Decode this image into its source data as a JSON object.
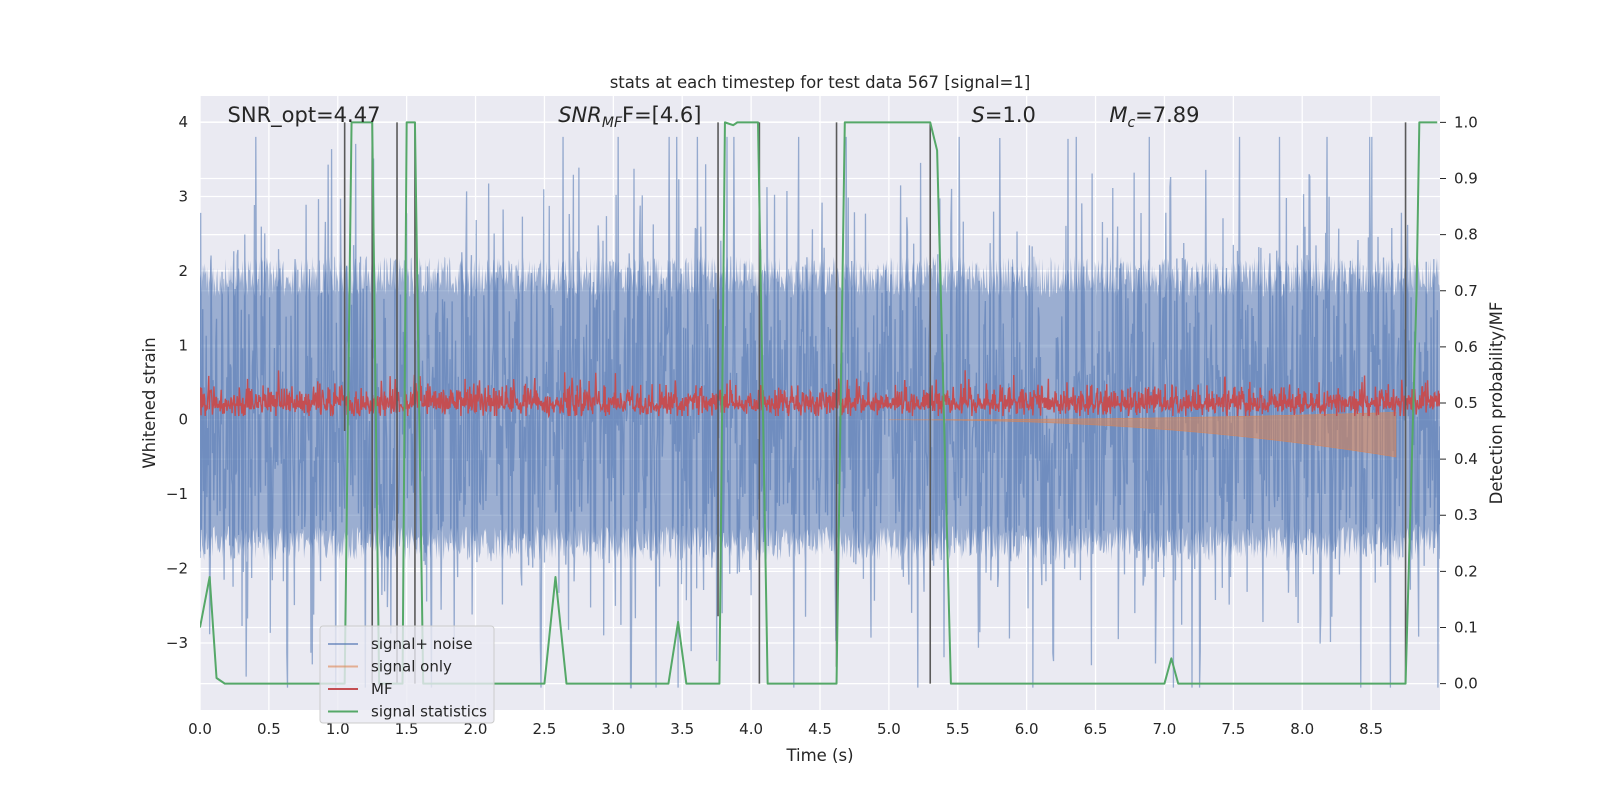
{
  "chart_data": {
    "type": "line",
    "title": "stats at each timestep for test data 567 [signal=1]",
    "xlabel": "Time (s)",
    "ylabel_left": "Whitened strain",
    "ylabel_right": "Detection probability/MF",
    "xlim": [
      0,
      9.0
    ],
    "ylim_left": [
      -3.9,
      4.35
    ],
    "ylim_right": [
      -0.047,
      1.047
    ],
    "grid": true,
    "legend_position": "lower-left",
    "x_ticks": [
      "0.0",
      "0.5",
      "1.0",
      "1.5",
      "2.0",
      "2.5",
      "3.0",
      "3.5",
      "4.0",
      "4.5",
      "5.0",
      "5.5",
      "6.0",
      "6.5",
      "7.0",
      "7.5",
      "8.0",
      "8.5"
    ],
    "y_ticks_left": [
      "4",
      "3",
      "2",
      "1",
      "0",
      "−1",
      "−2",
      "−3"
    ],
    "y_ticks_right": [
      "1.0",
      "0.9",
      "0.8",
      "0.7",
      "0.6",
      "0.5",
      "0.4",
      "0.3",
      "0.2",
      "0.1",
      "0.0"
    ],
    "annotations": [
      {
        "text": "SNR_opt=4.47",
        "x": 0.2
      },
      {
        "text": "SNR",
        "sub": "MF",
        "rest": "F=[4.6]",
        "x": 2.6
      },
      {
        "text": "S",
        "rest": "=1.0",
        "x": 5.6
      },
      {
        "text": "M",
        "sub": "c",
        "rest": "=7.89",
        "x": 6.6
      }
    ],
    "series": [
      {
        "name": "signal+ noise",
        "color": "#4c72b0",
        "axis": "left",
        "envelope_upper": 2.2,
        "envelope_lower": -1.9,
        "noise_std": 0.85
      },
      {
        "name": "signal only",
        "color": "#dd8452",
        "axis": "left",
        "start_time": 5.0,
        "end_time": 8.68,
        "peak_amplitude": 0.5
      },
      {
        "name": "MF",
        "color": "#c44e52",
        "axis": "left",
        "baseline": 0.22,
        "noise_std": 0.13
      },
      {
        "name": "signal statistics",
        "color": "#55a868",
        "axis": "right",
        "x": [
          0,
          0.07,
          0.12,
          0.18,
          1.05,
          1.08,
          1.1,
          1.25,
          1.3,
          1.47,
          1.5,
          1.56,
          1.62,
          2.5,
          2.58,
          2.66,
          3.4,
          3.47,
          3.53,
          3.77,
          3.81,
          3.87,
          3.9,
          4.05,
          4.12,
          4.2,
          4.62,
          4.68,
          5.3,
          5.35,
          5.45,
          7.0,
          7.05,
          7.1,
          8.75,
          8.83,
          8.85,
          8.92,
          8.98
        ],
        "y": [
          0.1,
          0.19,
          0.01,
          0.0,
          0.0,
          0.6,
          1.0,
          1.0,
          0.0,
          0.0,
          1.0,
          1.0,
          0.0,
          0.0,
          0.19,
          0.0,
          0.0,
          0.11,
          0.0,
          0.0,
          1.0,
          0.995,
          1.0,
          1.0,
          0.0,
          0.0,
          0.0,
          1.0,
          1.0,
          0.95,
          0.0,
          0.0,
          0.045,
          0.0,
          0.0,
          0.7,
          1.0,
          1.0,
          1.0
        ]
      }
    ],
    "vertical_lines": [
      {
        "x": 1.05,
        "y0": 0.45,
        "y1": 1.0
      },
      {
        "x": 1.25,
        "y0": 0.0,
        "y1": 1.0
      },
      {
        "x": 1.43,
        "y0": 0.0,
        "y1": 1.0
      },
      {
        "x": 1.56,
        "y0": 0.0,
        "y1": 1.0
      },
      {
        "x": 3.76,
        "y0": 0.12,
        "y1": 1.0
      },
      {
        "x": 4.06,
        "y0": 0.0,
        "y1": 1.0
      },
      {
        "x": 4.62,
        "y0": 0.03,
        "y1": 1.0
      },
      {
        "x": 5.3,
        "y0": 0.0,
        "y1": 1.0
      },
      {
        "x": 8.75,
        "y0": 0.0,
        "y1": 1.0
      }
    ]
  },
  "colors": {
    "plot_background": "#eaeaf2",
    "grid": "#ffffff",
    "vline": "#5a5a5a"
  }
}
